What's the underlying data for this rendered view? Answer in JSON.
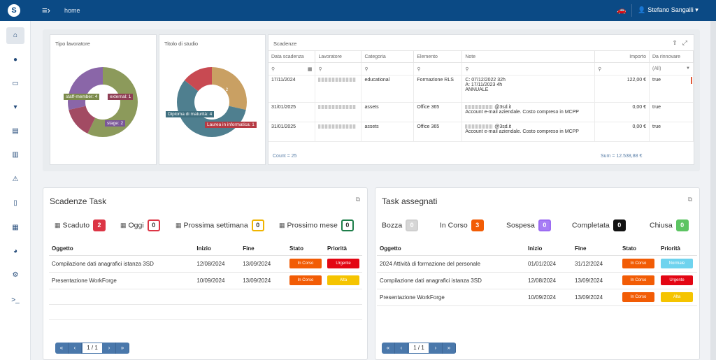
{
  "topbar": {
    "logo": "S",
    "menu_icon": "≡›",
    "breadcrumb": "home",
    "car_icon": "🚗",
    "user_icon": "👤",
    "user_name": "Stefano Sangalli ▾"
  },
  "sidebar": {
    "items": [
      {
        "name": "home-icon",
        "glyph": "⌂"
      },
      {
        "name": "user-icon",
        "glyph": "●"
      },
      {
        "name": "id-card-icon",
        "glyph": "▭"
      },
      {
        "name": "shirt-icon",
        "glyph": "▾"
      },
      {
        "name": "clipboard-icon",
        "glyph": "▤"
      },
      {
        "name": "clipboard-check-icon",
        "glyph": "▥"
      },
      {
        "name": "hazard-icon",
        "glyph": "⚠"
      },
      {
        "name": "document-icon",
        "glyph": "▯"
      },
      {
        "name": "table-icon",
        "glyph": "▦"
      },
      {
        "name": "pie-chart-icon",
        "glyph": "◕"
      },
      {
        "name": "gear-icon",
        "glyph": "⚙"
      },
      {
        "name": "terminal-icon",
        "glyph": ">_"
      }
    ]
  },
  "panels": {
    "tipo_lavoratore": {
      "title": "Tipo lavoratore",
      "labels": [
        "staff-member: 4",
        "external: 1",
        "stage: 2"
      ]
    },
    "titolo_studio": {
      "title": "Titolo di studio",
      "labels": [
        ": 2",
        "Diploma di maturità: 4",
        "Laurea in informatica: 1"
      ]
    }
  },
  "chart_data": [
    {
      "type": "pie",
      "title": "Tipo lavoratore",
      "categories": [
        "staff-member",
        "external",
        "stage"
      ],
      "values": [
        4,
        1,
        2
      ],
      "colors": [
        "#8c9a5b",
        "#a24b63",
        "#8a66a8"
      ]
    },
    {
      "type": "pie",
      "title": "Titolo di studio",
      "categories": [
        "",
        "Diploma di maturità",
        "Laurea in informatica"
      ],
      "values": [
        2,
        4,
        1
      ],
      "colors": [
        "#c9a063",
        "#4f7f8f",
        "#c84a52"
      ]
    }
  ],
  "scadenze": {
    "title": "Scadenze",
    "columns": [
      "Data scadenza",
      "Lavoratore",
      "Categoria",
      "Elemento",
      "Note",
      "Importo",
      "Da rinnovare"
    ],
    "filter_all": "(All)",
    "rows": [
      {
        "data": "17/11/2024",
        "categoria": "educational",
        "elemento": "Formazione RLS",
        "note1": "C: 07/12/2022 32h",
        "note2": "A: 17/11/2023 4h",
        "note3": "ANNUALE",
        "importo": "122,00 €",
        "rinnovare": "true"
      },
      {
        "data": "31/01/2025",
        "categoria": "assets",
        "elemento": "Office 365",
        "note1": "@3sd.it",
        "note2": "Account e-mail aziendale. Costo compreso in MCPP",
        "note3": "",
        "importo": "0,00 €",
        "rinnovare": "true"
      },
      {
        "data": "31/01/2025",
        "categoria": "assets",
        "elemento": "Office 365",
        "note1": "@3sd.it",
        "note2": "Account e-mail aziendale. Costo compreso in MCPP",
        "note3": "",
        "importo": "0,00 €",
        "rinnovare": "true"
      }
    ],
    "count": "Count = 25",
    "sum": "Sum = 12.538,88 €"
  },
  "scadenze_task": {
    "title": "Scadenze Task",
    "statuses": [
      {
        "label": "Scaduto",
        "count": "2"
      },
      {
        "label": "Oggi",
        "count": "0"
      },
      {
        "label": "Prossima settimana",
        "count": "0"
      },
      {
        "label": "Prossimo mese",
        "count": "0"
      }
    ],
    "columns": [
      "Oggetto",
      "Inizio",
      "Fine",
      "Stato",
      "Priorità"
    ],
    "rows": [
      {
        "oggetto": "Compilazione dati anagrafici istanza 3SD",
        "inizio": "12/08/2024",
        "fine": "13/09/2024",
        "stato": "In Corso",
        "priorita": "Urgente"
      },
      {
        "oggetto": "Presentazione WorkForge",
        "inizio": "10/09/2024",
        "fine": "13/09/2024",
        "stato": "In Corso",
        "priorita": "Alta"
      }
    ],
    "page": "1 / 1"
  },
  "task_assegnati": {
    "title": "Task assegnati",
    "statuses": [
      {
        "label": "Bozza",
        "count": "0"
      },
      {
        "label": "In Corso",
        "count": "3"
      },
      {
        "label": "Sospesa",
        "count": "0"
      },
      {
        "label": "Completata",
        "count": "0"
      },
      {
        "label": "Chiusa",
        "count": "0"
      }
    ],
    "columns": [
      "Oggetto",
      "Inizio",
      "Fine",
      "Stato",
      "Priorità"
    ],
    "rows": [
      {
        "oggetto": "2024 Attività di formazione del personale",
        "inizio": "01/01/2024",
        "fine": "31/12/2024",
        "stato": "In Corso",
        "priorita": "Normale"
      },
      {
        "oggetto": "Compilazione dati anagrafici istanza 3SD",
        "inizio": "12/08/2024",
        "fine": "13/09/2024",
        "stato": "In Corso",
        "priorita": "Urgente"
      },
      {
        "oggetto": "Presentazione WorkForge",
        "inizio": "10/09/2024",
        "fine": "13/09/2024",
        "stato": "In Corso",
        "priorita": "Alta"
      }
    ],
    "page": "1 / 1"
  },
  "pager": {
    "first": "«",
    "prev": "‹",
    "next": "›",
    "last": "»"
  },
  "icons": {
    "external": "⧉",
    "export": "⇪",
    "expand": "⤢",
    "search": "⚲",
    "calendar": "▦"
  }
}
